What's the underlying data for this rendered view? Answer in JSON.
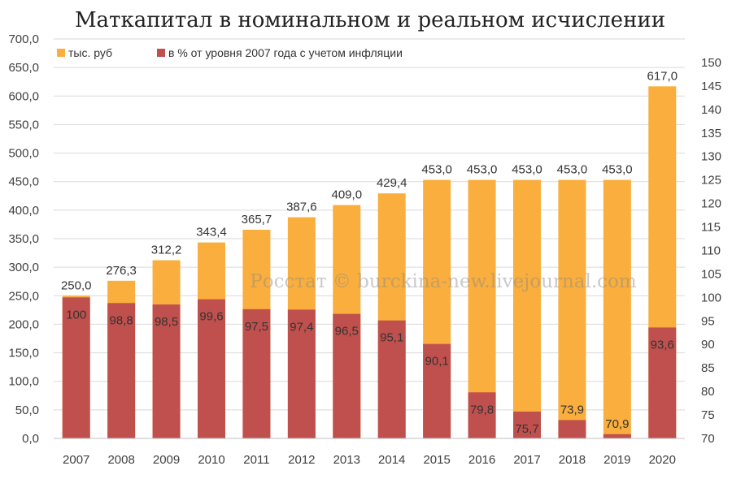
{
  "chart_data": {
    "type": "bar",
    "title": "Маткапитал в номинальном и реальном исчислении",
    "watermark": "Росстат © burckina-new.livejournal.com",
    "categories": [
      "2007",
      "2008",
      "2009",
      "2010",
      "2011",
      "2012",
      "2013",
      "2014",
      "2015",
      "2016",
      "2017",
      "2018",
      "2019",
      "2020"
    ],
    "series": [
      {
        "name": "тыс. руб",
        "axis": "left",
        "color": "#F9AE3D",
        "values": [
          250.0,
          276.3,
          312.2,
          343.4,
          365.7,
          387.6,
          409.0,
          429.4,
          453.0,
          453.0,
          453.0,
          453.0,
          453.0,
          617.0
        ],
        "labels": [
          "250,0",
          "276,3",
          "312,2",
          "343,4",
          "365,7",
          "387,6",
          "409,0",
          "429,4",
          "453,0",
          "453,0",
          "453,0",
          "453,0",
          "453,0",
          "617,0"
        ]
      },
      {
        "name": "в % от уровня 2007 года с учетом инфляции",
        "axis": "right",
        "color": "#C0504D",
        "values": [
          100,
          98.8,
          98.5,
          99.6,
          97.5,
          97.4,
          96.5,
          95.1,
          90.1,
          79.8,
          75.7,
          73.9,
          70.9,
          93.6
        ],
        "labels": [
          "100",
          "98,8",
          "98,5",
          "99,6",
          "97,5",
          "97,4",
          "96,5",
          "95,1",
          "90,1",
          "79,8",
          "75,7",
          "73,9",
          "70,9",
          "93,6"
        ]
      }
    ],
    "y_left": {
      "ylim": [
        0,
        700
      ],
      "ticks": [
        0,
        50,
        100,
        150,
        200,
        250,
        300,
        350,
        400,
        450,
        500,
        550,
        600,
        650,
        700
      ],
      "tick_labels": [
        "0,0",
        "50,0",
        "100,0",
        "150,0",
        "200,0",
        "250,0",
        "300,0",
        "350,0",
        "400,0",
        "450,0",
        "500,0",
        "550,0",
        "600,0",
        "650,0",
        "700,0"
      ]
    },
    "y_right": {
      "ylim": [
        70,
        155
      ],
      "ticks": [
        70,
        75,
        80,
        85,
        90,
        95,
        100,
        105,
        110,
        115,
        120,
        125,
        130,
        135,
        140,
        145,
        150
      ],
      "tick_labels": [
        "70",
        "75",
        "80",
        "85",
        "90",
        "95",
        "100",
        "105",
        "110",
        "115",
        "120",
        "125",
        "130",
        "135",
        "140",
        "145",
        "150"
      ]
    },
    "grid": true,
    "legend_position": "top-left"
  }
}
